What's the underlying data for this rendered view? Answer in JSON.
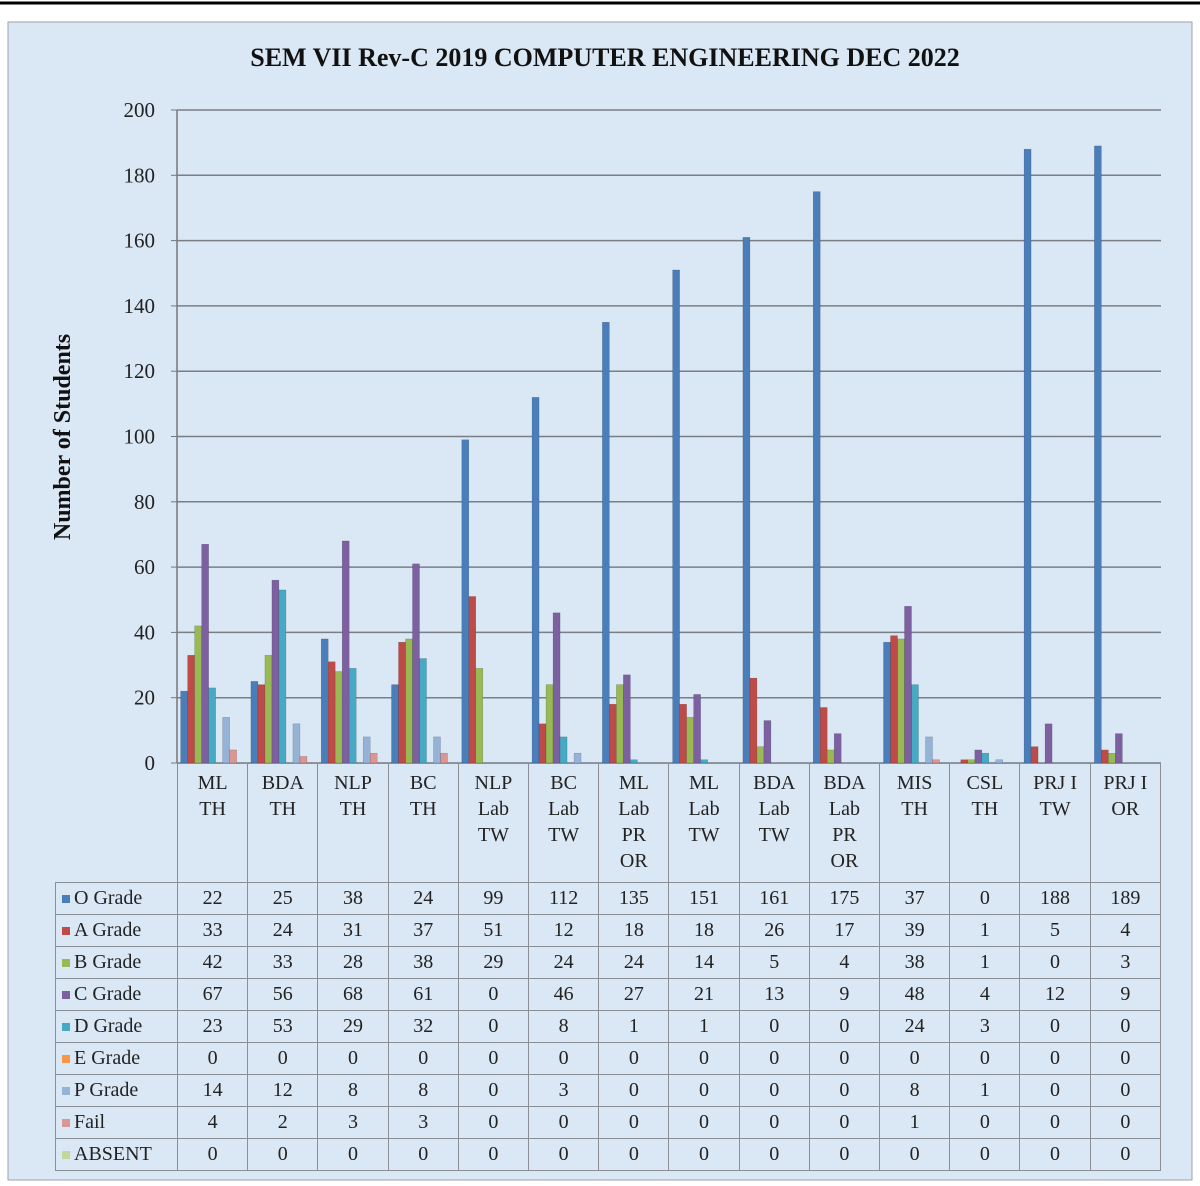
{
  "chart_data": {
    "type": "bar",
    "title": "SEM VII Rev-C 2019 COMPUTER ENGINEERING DEC 2022",
    "y_label": "Number of Students",
    "categories": [
      "ML\nTH",
      "BDA\nTH",
      "NLP\nTH",
      "BC\nTH",
      "NLP\nLab\nTW",
      "BC\nLab\nTW",
      "ML\nLab\nPR\nOR",
      "ML\nLab\nTW",
      "BDA\nLab\nTW",
      "BDA\nLab\nPR\nOR",
      "MIS\nTH",
      "CSL\nTH",
      "PRJ I\nTW",
      "PRJ I\nOR"
    ],
    "series": [
      {
        "name": "O Grade",
        "color": "#4a7ebb",
        "values": [
          22,
          25,
          38,
          24,
          99,
          112,
          135,
          151,
          161,
          175,
          37,
          0,
          188,
          189
        ]
      },
      {
        "name": "A Grade",
        "color": "#be4b48",
        "values": [
          33,
          24,
          31,
          37,
          51,
          12,
          18,
          18,
          26,
          17,
          39,
          1,
          5,
          4
        ]
      },
      {
        "name": "B Grade",
        "color": "#98b954",
        "values": [
          42,
          33,
          28,
          38,
          29,
          24,
          24,
          14,
          5,
          4,
          38,
          1,
          0,
          3
        ]
      },
      {
        "name": "C Grade",
        "color": "#7d60a0",
        "values": [
          67,
          56,
          68,
          61,
          0,
          46,
          27,
          21,
          13,
          9,
          48,
          4,
          12,
          9
        ]
      },
      {
        "name": "D Grade",
        "color": "#46aac5",
        "values": [
          23,
          53,
          29,
          32,
          0,
          8,
          1,
          1,
          0,
          0,
          24,
          3,
          0,
          0
        ]
      },
      {
        "name": "E Grade",
        "color": "#f79646",
        "values": [
          0,
          0,
          0,
          0,
          0,
          0,
          0,
          0,
          0,
          0,
          0,
          0,
          0,
          0
        ]
      },
      {
        "name": "P Grade",
        "color": "#95b3d7",
        "values": [
          14,
          12,
          8,
          8,
          0,
          3,
          0,
          0,
          0,
          0,
          8,
          1,
          0,
          0
        ]
      },
      {
        "name": "Fail",
        "color": "#d99694",
        "values": [
          4,
          2,
          3,
          3,
          0,
          0,
          0,
          0,
          0,
          0,
          1,
          0,
          0,
          0
        ]
      },
      {
        "name": "ABSENT",
        "color": "#c3d69b",
        "values": [
          0,
          0,
          0,
          0,
          0,
          0,
          0,
          0,
          0,
          0,
          0,
          0,
          0,
          0
        ]
      }
    ],
    "ylim": [
      0,
      200
    ],
    "yticks": [
      0,
      20,
      40,
      60,
      80,
      100,
      120,
      140,
      160,
      180,
      200
    ],
    "grid": true
  }
}
